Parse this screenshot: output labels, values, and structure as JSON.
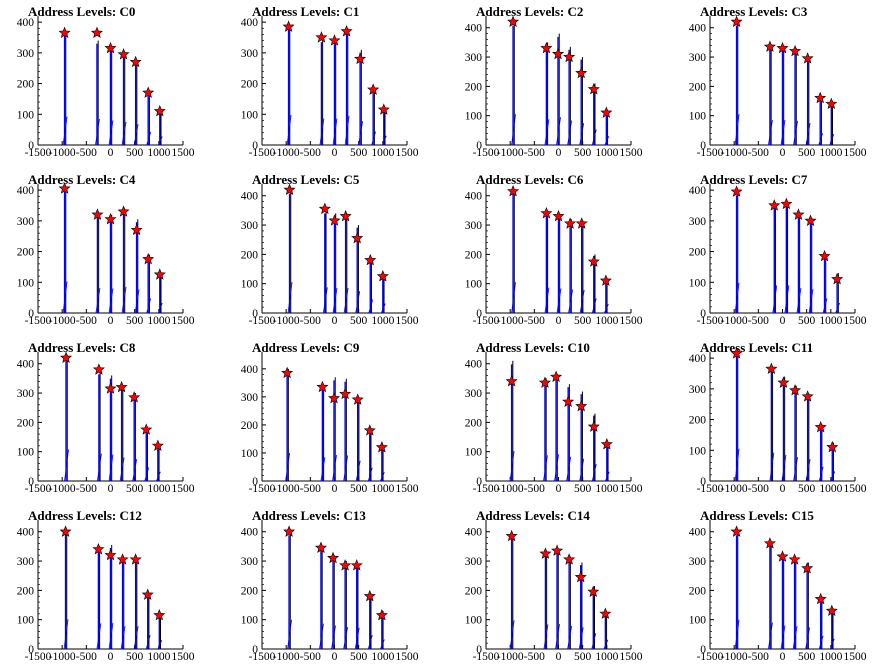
{
  "chart_data": [
    {
      "type": "bar",
      "title": "Address Levels: C0",
      "xlim": [
        -1500,
        1500
      ],
      "ylim": [
        0,
        420
      ],
      "xticks": [
        -1500,
        -1000,
        -500,
        0,
        500,
        1000,
        1500
      ],
      "yticks": [
        0,
        100,
        200,
        300,
        400
      ],
      "peaks": [
        {
          "x": -950,
          "bin": 370,
          "marker": 365
        },
        {
          "x": -280,
          "bin": 340,
          "marker": 365
        },
        {
          "x": 0,
          "bin": 320,
          "marker": 315
        },
        {
          "x": 270,
          "bin": 300,
          "marker": 295
        },
        {
          "x": 520,
          "bin": 270,
          "marker": 270
        },
        {
          "x": 780,
          "bin": 170,
          "marker": 170
        },
        {
          "x": 1020,
          "bin": 110,
          "marker": 110
        }
      ]
    },
    {
      "type": "bar",
      "title": "Address Levels: C1",
      "xlim": [
        -1500,
        1500
      ],
      "ylim": [
        0,
        420
      ],
      "xticks": [
        -1500,
        -1000,
        -500,
        0,
        500,
        1000,
        1500
      ],
      "yticks": [
        0,
        100,
        200,
        300,
        400
      ],
      "peaks": [
        {
          "x": -950,
          "bin": 390,
          "marker": 385
        },
        {
          "x": -270,
          "bin": 345,
          "marker": 350
        },
        {
          "x": 0,
          "bin": 345,
          "marker": 340
        },
        {
          "x": 250,
          "bin": 380,
          "marker": 370
        },
        {
          "x": 530,
          "bin": 310,
          "marker": 280
        },
        {
          "x": 800,
          "bin": 175,
          "marker": 180
        },
        {
          "x": 1020,
          "bin": 120,
          "marker": 115
        }
      ]
    },
    {
      "type": "bar",
      "title": "Address Levels: C2",
      "xlim": [
        -1500,
        1500
      ],
      "ylim": [
        0,
        440
      ],
      "xticks": [
        -1500,
        -1000,
        -500,
        0,
        500,
        1000,
        1500
      ],
      "yticks": [
        0,
        100,
        200,
        300,
        400
      ],
      "peaks": [
        {
          "x": -940,
          "bin": 420,
          "marker": 420
        },
        {
          "x": -250,
          "bin": 350,
          "marker": 330
        },
        {
          "x": -10,
          "bin": 380,
          "marker": 310
        },
        {
          "x": 220,
          "bin": 335,
          "marker": 300
        },
        {
          "x": 470,
          "bin": 300,
          "marker": 245
        },
        {
          "x": 730,
          "bin": 210,
          "marker": 190
        },
        {
          "x": 990,
          "bin": 120,
          "marker": 110
        }
      ]
    },
    {
      "type": "bar",
      "title": "Address Levels: C3",
      "xlim": [
        -1500,
        1500
      ],
      "ylim": [
        0,
        440
      ],
      "xticks": [
        -1500,
        -1000,
        -500,
        0,
        500,
        1000,
        1500
      ],
      "yticks": [
        0,
        100,
        200,
        300,
        400
      ],
      "peaks": [
        {
          "x": -950,
          "bin": 420,
          "marker": 420
        },
        {
          "x": -260,
          "bin": 340,
          "marker": 335
        },
        {
          "x": 0,
          "bin": 340,
          "marker": 330
        },
        {
          "x": 260,
          "bin": 330,
          "marker": 320
        },
        {
          "x": 520,
          "bin": 300,
          "marker": 295
        },
        {
          "x": 780,
          "bin": 160,
          "marker": 160
        },
        {
          "x": 1010,
          "bin": 150,
          "marker": 140
        }
      ]
    },
    {
      "type": "bar",
      "title": "Address Levels: C4",
      "xlim": [
        -1500,
        1500
      ],
      "ylim": [
        0,
        420
      ],
      "xticks": [
        -1500,
        -1000,
        -500,
        0,
        500,
        1000,
        1500
      ],
      "yticks": [
        0,
        100,
        200,
        300,
        400
      ],
      "peaks": [
        {
          "x": -950,
          "bin": 410,
          "marker": 405
        },
        {
          "x": -270,
          "bin": 325,
          "marker": 320
        },
        {
          "x": 0,
          "bin": 320,
          "marker": 305
        },
        {
          "x": 270,
          "bin": 340,
          "marker": 330
        },
        {
          "x": 540,
          "bin": 305,
          "marker": 270
        },
        {
          "x": 780,
          "bin": 190,
          "marker": 175
        },
        {
          "x": 1020,
          "bin": 130,
          "marker": 125
        }
      ]
    },
    {
      "type": "bar",
      "title": "Address Levels: C5",
      "xlim": [
        -1500,
        1500
      ],
      "ylim": [
        0,
        440
      ],
      "xticks": [
        -1500,
        -1000,
        -500,
        0,
        500,
        1000,
        1500
      ],
      "yticks": [
        0,
        100,
        200,
        300,
        400
      ],
      "peaks": [
        {
          "x": -930,
          "bin": 420,
          "marker": 420
        },
        {
          "x": -200,
          "bin": 350,
          "marker": 355
        },
        {
          "x": 0,
          "bin": 340,
          "marker": 315
        },
        {
          "x": 230,
          "bin": 340,
          "marker": 330
        },
        {
          "x": 470,
          "bin": 300,
          "marker": 255
        },
        {
          "x": 740,
          "bin": 185,
          "marker": 180
        },
        {
          "x": 1000,
          "bin": 130,
          "marker": 125
        }
      ]
    },
    {
      "type": "bar",
      "title": "Address Levels: C6",
      "xlim": [
        -1500,
        1500
      ],
      "ylim": [
        0,
        440
      ],
      "xticks": [
        -1500,
        -1000,
        -500,
        0,
        500,
        1000,
        1500
      ],
      "yticks": [
        0,
        100,
        200,
        300,
        400
      ],
      "peaks": [
        {
          "x": -940,
          "bin": 420,
          "marker": 415
        },
        {
          "x": -250,
          "bin": 345,
          "marker": 340
        },
        {
          "x": 0,
          "bin": 335,
          "marker": 330
        },
        {
          "x": 240,
          "bin": 320,
          "marker": 305
        },
        {
          "x": 480,
          "bin": 315,
          "marker": 305
        },
        {
          "x": 730,
          "bin": 200,
          "marker": 175
        },
        {
          "x": 980,
          "bin": 120,
          "marker": 110
        }
      ]
    },
    {
      "type": "bar",
      "title": "Address Levels: C7",
      "xlim": [
        -1500,
        1500
      ],
      "ylim": [
        0,
        420
      ],
      "xticks": [
        -1500,
        -1000,
        -500,
        0,
        500,
        1000,
        1500
      ],
      "yticks": [
        0,
        100,
        200,
        300,
        400
      ],
      "peaks": [
        {
          "x": -950,
          "bin": 395,
          "marker": 395
        },
        {
          "x": -170,
          "bin": 360,
          "marker": 350
        },
        {
          "x": 80,
          "bin": 360,
          "marker": 355
        },
        {
          "x": 330,
          "bin": 325,
          "marker": 320
        },
        {
          "x": 580,
          "bin": 310,
          "marker": 300
        },
        {
          "x": 870,
          "bin": 190,
          "marker": 185
        },
        {
          "x": 1130,
          "bin": 130,
          "marker": 110
        }
      ]
    },
    {
      "type": "bar",
      "title": "Address Levels: C8",
      "xlim": [
        -1500,
        1500
      ],
      "ylim": [
        0,
        440
      ],
      "xticks": [
        -1500,
        -1000,
        -500,
        0,
        500,
        1000,
        1500
      ],
      "yticks": [
        0,
        100,
        200,
        300,
        400
      ],
      "peaks": [
        {
          "x": -920,
          "bin": 430,
          "marker": 420
        },
        {
          "x": -240,
          "bin": 375,
          "marker": 380
        },
        {
          "x": 0,
          "bin": 360,
          "marker": 315
        },
        {
          "x": 230,
          "bin": 320,
          "marker": 320
        },
        {
          "x": 490,
          "bin": 300,
          "marker": 285
        },
        {
          "x": 740,
          "bin": 185,
          "marker": 175
        },
        {
          "x": 980,
          "bin": 125,
          "marker": 120
        }
      ]
    },
    {
      "type": "bar",
      "title": "Address Levels: C9",
      "xlim": [
        -1500,
        1500
      ],
      "ylim": [
        0,
        460
      ],
      "xticks": [
        -1500,
        -1000,
        -500,
        0,
        500,
        1000,
        1500
      ],
      "yticks": [
        0,
        100,
        200,
        300,
        400
      ],
      "peaks": [
        {
          "x": -980,
          "bin": 400,
          "marker": 385
        },
        {
          "x": -250,
          "bin": 340,
          "marker": 335
        },
        {
          "x": -10,
          "bin": 370,
          "marker": 295
        },
        {
          "x": 220,
          "bin": 365,
          "marker": 310
        },
        {
          "x": 480,
          "bin": 290,
          "marker": 290
        },
        {
          "x": 730,
          "bin": 190,
          "marker": 180
        },
        {
          "x": 980,
          "bin": 125,
          "marker": 120
        }
      ]
    },
    {
      "type": "bar",
      "title": "Address Levels: C10",
      "xlim": [
        -1500,
        1500
      ],
      "ylim": [
        0,
        440
      ],
      "xticks": [
        -1500,
        -1000,
        -500,
        0,
        500,
        1000,
        1500
      ],
      "yticks": [
        0,
        100,
        200,
        300,
        400
      ],
      "peaks": [
        {
          "x": -970,
          "bin": 410,
          "marker": 340
        },
        {
          "x": -280,
          "bin": 350,
          "marker": 335
        },
        {
          "x": -50,
          "bin": 365,
          "marker": 355
        },
        {
          "x": 200,
          "bin": 330,
          "marker": 270
        },
        {
          "x": 470,
          "bin": 305,
          "marker": 255
        },
        {
          "x": 730,
          "bin": 230,
          "marker": 185
        },
        {
          "x": 1000,
          "bin": 125,
          "marker": 125
        }
      ]
    },
    {
      "type": "bar",
      "title": "Address Levels: C11",
      "xlim": [
        -1500,
        1500
      ],
      "ylim": [
        0,
        420
      ],
      "xticks": [
        -1500,
        -1000,
        -500,
        0,
        500,
        1000,
        1500
      ],
      "yticks": [
        0,
        100,
        200,
        300,
        400
      ],
      "peaks": [
        {
          "x": -950,
          "bin": 420,
          "marker": 415
        },
        {
          "x": -230,
          "bin": 370,
          "marker": 365
        },
        {
          "x": 20,
          "bin": 340,
          "marker": 320
        },
        {
          "x": 260,
          "bin": 310,
          "marker": 295
        },
        {
          "x": 520,
          "bin": 285,
          "marker": 275
        },
        {
          "x": 790,
          "bin": 185,
          "marker": 175
        },
        {
          "x": 1030,
          "bin": 125,
          "marker": 110
        }
      ]
    },
    {
      "type": "bar",
      "title": "Address Levels: C12",
      "xlim": [
        -1500,
        1500
      ],
      "ylim": [
        0,
        440
      ],
      "xticks": [
        -1500,
        -1000,
        -500,
        0,
        500,
        1000,
        1500
      ],
      "yticks": [
        0,
        100,
        200,
        300,
        400
      ],
      "peaks": [
        {
          "x": -930,
          "bin": 405,
          "marker": 400
        },
        {
          "x": -250,
          "bin": 350,
          "marker": 340
        },
        {
          "x": 0,
          "bin": 355,
          "marker": 320
        },
        {
          "x": 250,
          "bin": 310,
          "marker": 305
        },
        {
          "x": 520,
          "bin": 310,
          "marker": 305
        },
        {
          "x": 770,
          "bin": 190,
          "marker": 185
        },
        {
          "x": 1010,
          "bin": 120,
          "marker": 115
        }
      ]
    },
    {
      "type": "bar",
      "title": "Address Levels: C13",
      "xlim": [
        -1500,
        1500
      ],
      "ylim": [
        0,
        440
      ],
      "xticks": [
        -1500,
        -1000,
        -500,
        0,
        500,
        1000,
        1500
      ],
      "yticks": [
        0,
        100,
        200,
        300,
        400
      ],
      "peaks": [
        {
          "x": -940,
          "bin": 400,
          "marker": 400
        },
        {
          "x": -280,
          "bin": 345,
          "marker": 345
        },
        {
          "x": -30,
          "bin": 320,
          "marker": 310
        },
        {
          "x": 220,
          "bin": 300,
          "marker": 285
        },
        {
          "x": 460,
          "bin": 290,
          "marker": 285
        },
        {
          "x": 730,
          "bin": 190,
          "marker": 180
        },
        {
          "x": 980,
          "bin": 130,
          "marker": 115
        }
      ]
    },
    {
      "type": "bar",
      "title": "Address Levels: C14",
      "xlim": [
        -1500,
        1500
      ],
      "ylim": [
        0,
        440
      ],
      "xticks": [
        -1500,
        -1000,
        -500,
        0,
        500,
        1000,
        1500
      ],
      "yticks": [
        0,
        100,
        200,
        300,
        400
      ],
      "peaks": [
        {
          "x": -970,
          "bin": 390,
          "marker": 385
        },
        {
          "x": -270,
          "bin": 335,
          "marker": 325
        },
        {
          "x": -30,
          "bin": 340,
          "marker": 335
        },
        {
          "x": 220,
          "bin": 315,
          "marker": 305
        },
        {
          "x": 460,
          "bin": 295,
          "marker": 245
        },
        {
          "x": 720,
          "bin": 215,
          "marker": 195
        },
        {
          "x": 970,
          "bin": 125,
          "marker": 120
        }
      ]
    },
    {
      "type": "bar",
      "title": "Address Levels: C15",
      "xlim": [
        -1500,
        1500
      ],
      "ylim": [
        0,
        440
      ],
      "xticks": [
        -1500,
        -1000,
        -500,
        0,
        500,
        1000,
        1500
      ],
      "yticks": [
        0,
        100,
        200,
        300,
        400
      ],
      "peaks": [
        {
          "x": -950,
          "bin": 400,
          "marker": 400
        },
        {
          "x": -260,
          "bin": 360,
          "marker": 360
        },
        {
          "x": 0,
          "bin": 320,
          "marker": 315
        },
        {
          "x": 250,
          "bin": 310,
          "marker": 305
        },
        {
          "x": 510,
          "bin": 295,
          "marker": 275
        },
        {
          "x": 790,
          "bin": 180,
          "marker": 170
        },
        {
          "x": 1020,
          "bin": 140,
          "marker": 130
        }
      ]
    }
  ]
}
